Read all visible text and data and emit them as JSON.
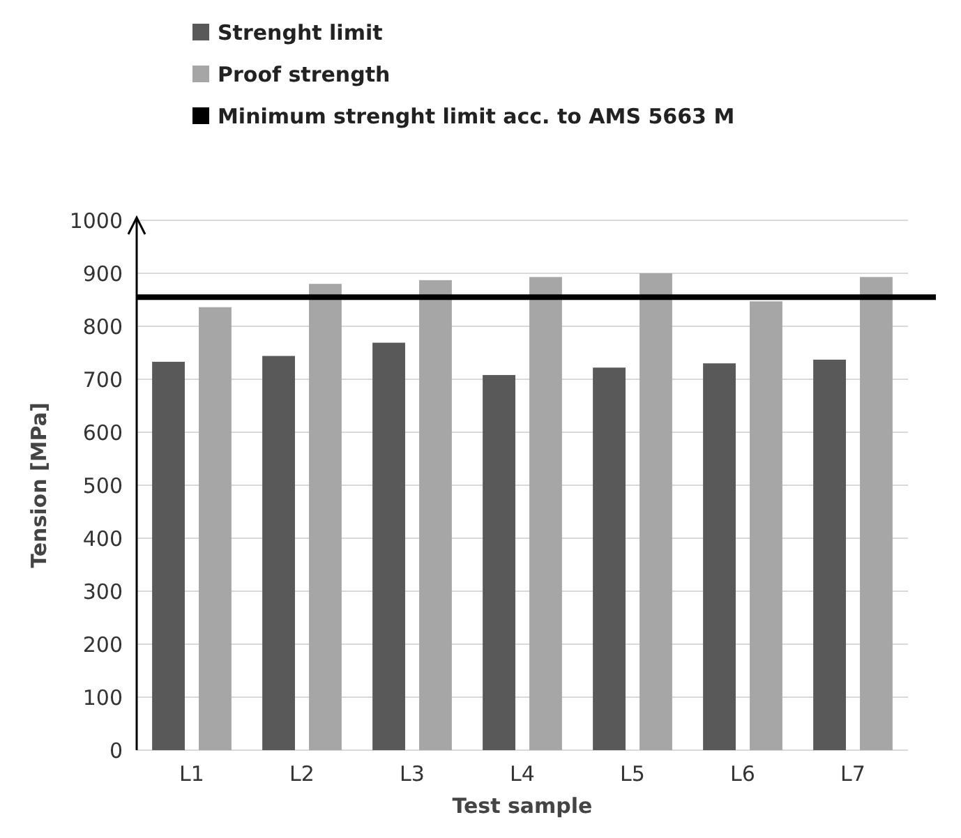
{
  "chart_data": {
    "type": "bar",
    "xlabel": "Test sample",
    "ylabel": "Tension [MPa]",
    "categories": [
      "L1",
      "L2",
      "L3",
      "L4",
      "L5",
      "L6",
      "L7"
    ],
    "series": [
      {
        "name": "Strenght limit",
        "color": "#595959",
        "values": [
          733,
          744,
          769,
          708,
          722,
          730,
          737
        ]
      },
      {
        "name": "Proof strength",
        "color": "#a6a6a6",
        "values": [
          836,
          880,
          887,
          893,
          900,
          847,
          893
        ]
      }
    ],
    "ref_lines": [
      {
        "axis": "y",
        "value": 855,
        "label": "Minimum strenght limit acc. to AMS 5663 M",
        "color": "#000000"
      }
    ],
    "ylim": [
      0,
      1000
    ],
    "yticks": [
      0,
      100,
      200,
      300,
      400,
      500,
      600,
      700,
      800,
      900,
      1000
    ],
    "grid": "y",
    "legend": "top left"
  }
}
